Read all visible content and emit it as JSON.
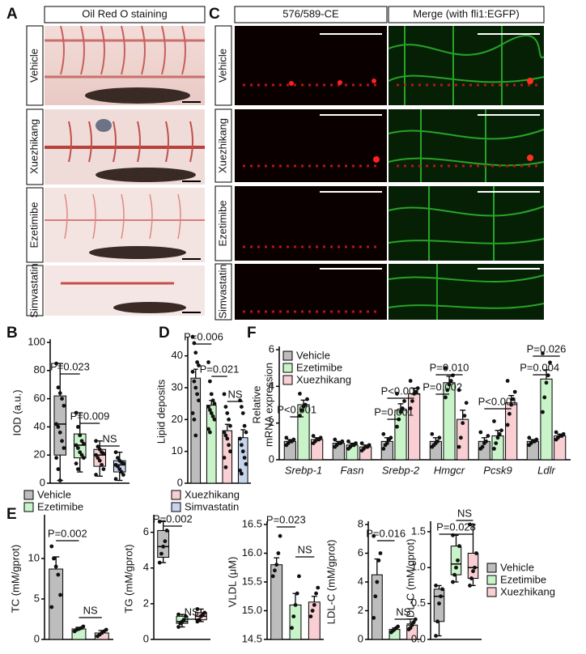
{
  "panel_letters": [
    "A",
    "C",
    "B",
    "D",
    "F",
    "E"
  ],
  "panel_a": {
    "title": "Oil Red O staining",
    "rows": [
      "Vehicle",
      "Xuezhikang",
      "Ezetimibe",
      "Simvastatin"
    ]
  },
  "panel_c": {
    "columns": [
      "576/589-CE",
      "Merge (with fli1:EGFP)"
    ],
    "rows": [
      "Vehicle",
      "Xuezhikang",
      "Ezetimibe",
      "Simvastatin"
    ]
  },
  "chart_data": [
    {
      "type": "box",
      "ylabel": "IOD (a.u.)",
      "ylim": [
        0,
        100
      ],
      "yticks": [
        0,
        20,
        40,
        60,
        80,
        100
      ],
      "annotations": [
        "P=0.023",
        "P=0.009",
        "NS"
      ],
      "series": [
        {
          "name": "Vehicle",
          "color": "#bdbdbd",
          "median": [
            42
          ],
          "q1": [
            20
          ],
          "q3": [
            62
          ],
          "min": [
            2
          ],
          "max": [
            85
          ],
          "points": [
            [
              85,
              68,
              64,
              60,
              55,
              42,
              40,
              36,
              30,
              25,
              18,
              10,
              2
            ]
          ]
        },
        {
          "name": "Ezetimibe",
          "color": "#c9f3c9",
          "median": [
            27
          ],
          "q1": [
            18
          ],
          "q3": [
            35
          ],
          "min": [
            8
          ],
          "max": [
            50
          ],
          "points": [
            [
              50,
              40,
              34,
              30,
              28,
              27,
              25,
              22,
              20,
              18,
              14,
              10
            ]
          ]
        },
        {
          "color": "#f9cfd3",
          "median": [
            20
          ],
          "q1": [
            12
          ],
          "q3": [
            24
          ],
          "min": [
            5
          ],
          "max": [
            30
          ],
          "points": [
            [
              30,
              26,
              24,
              22,
              21,
              20,
              18,
              16,
              13,
              10,
              6
            ]
          ]
        },
        {
          "color": "#c5d5ee",
          "median": [
            13
          ],
          "q1": [
            8
          ],
          "q3": [
            16
          ],
          "min": [
            2
          ],
          "max": [
            22
          ],
          "points": [
            [
              22,
              18,
              16,
              15,
              14,
              13,
              12,
              10,
              8,
              6,
              3
            ]
          ]
        }
      ]
    },
    {
      "type": "bar",
      "ylabel": "Lipid deposits",
      "ylim": [
        0,
        45
      ],
      "yticks": [
        0,
        10,
        20,
        30,
        40
      ],
      "annotations": [
        "P=0.006",
        "P=0.021",
        "NS"
      ],
      "series": [
        {
          "color": "#bdbdbd",
          "values": [
            33
          ],
          "errors": [
            2.8
          ],
          "points": [
            [
              46,
              44,
              41,
              38,
              37,
              35,
              32,
              30,
              28,
              26,
              22,
              20,
              15
            ]
          ]
        },
        {
          "color": "#c9f3c9",
          "values": [
            24.5
          ],
          "errors": [
            1.5
          ],
          "points": [
            [
              38,
              32,
              28,
              26,
              25,
              24,
              23,
              22,
              21,
              20,
              17,
              16
            ]
          ]
        },
        {
          "name": "Xuezhikang",
          "color": "#f9cfd3",
          "values": [
            16.5
          ],
          "errors": [
            2
          ],
          "points": [
            [
              28,
              24,
              22,
              20,
              18,
              16,
              15,
              14,
              12,
              10,
              8,
              5
            ]
          ]
        },
        {
          "name": "Simvastatin",
          "color": "#c5d5ee",
          "values": [
            14.3
          ],
          "errors": [
            2.5
          ],
          "points": [
            [
              26,
              24,
              22,
              18,
              16,
              14,
              12,
              10,
              8,
              6,
              4,
              3
            ]
          ]
        }
      ]
    },
    {
      "type": "bar",
      "ylabel": [
        "Relative",
        "mRNA expression"
      ],
      "ylim": [
        0,
        6
      ],
      "yticks": [
        0,
        2,
        4,
        6
      ],
      "categories": [
        "Srebp-1",
        "Fasn",
        "Srebp-2",
        "Hmgcr",
        "Pcsk9",
        "Ldlr"
      ],
      "annotations": [
        "P<0.001",
        "P=0.001",
        "P<0.001",
        "P=0.002",
        "P=0.010",
        "P<0.001",
        "P=0.004",
        "P=0.026"
      ],
      "series": [
        {
          "name": "Vehicle",
          "color": "#bdbdbd",
          "values": [
            1.0,
            0.9,
            1.0,
            1.0,
            1.0,
            1.0
          ],
          "errors": [
            0.1,
            0.1,
            0.2,
            0.2,
            0.2,
            0.1
          ],
          "points": [
            [
              0.8,
              0.9,
              1.0,
              1.0,
              1.1,
              1.2
            ],
            [
              0.7,
              0.8,
              0.9,
              0.9,
              1.0,
              1.1
            ],
            [
              0.6,
              0.8,
              0.9,
              1.1,
              1.2,
              1.4
            ],
            [
              0.7,
              0.8,
              0.9,
              1.0,
              1.2,
              1.4
            ],
            [
              0.6,
              0.7,
              0.9,
              1.0,
              1.3,
              1.5
            ],
            [
              0.8,
              0.9,
              1.0,
              1.0,
              1.1,
              1.2
            ]
          ]
        },
        {
          "name": "Ezetimibe",
          "color": "#c9f3c9",
          "values": [
            3.0,
            0.8,
            2.7,
            4.2,
            1.3,
            4.4
          ],
          "errors": [
            0.25,
            0.1,
            0.35,
            0.35,
            0.3,
            0.5
          ],
          "points": [
            [
              2.4,
              2.7,
              2.9,
              3.0,
              3.3,
              3.6
            ],
            [
              0.6,
              0.7,
              0.8,
              0.8,
              0.9,
              1.0
            ],
            [
              1.8,
              2.2,
              2.6,
              2.8,
              3.2,
              3.6
            ],
            [
              3.4,
              3.8,
              4.1,
              4.3,
              4.6,
              5.0
            ],
            [
              0.6,
              0.9,
              1.2,
              1.4,
              1.6,
              2.1
            ],
            [
              2.6,
              3.4,
              4.2,
              4.6,
              5.3,
              5.8
            ]
          ]
        },
        {
          "name": "Xuezhikang",
          "color": "#f9cfd3",
          "values": [
            1.1,
            0.7,
            3.6,
            2.2,
            3.1,
            1.3
          ],
          "errors": [
            0.1,
            0.1,
            0.3,
            0.5,
            0.4,
            0.1
          ],
          "points": [
            [
              0.9,
              1.0,
              1.1,
              1.1,
              1.2,
              1.3
            ],
            [
              0.5,
              0.6,
              0.7,
              0.7,
              0.8,
              0.9
            ],
            [
              2.8,
              3.2,
              3.6,
              3.7,
              3.9,
              4.3
            ],
            [
              0.7,
              1.2,
              2.0,
              2.4,
              3.1,
              3.8
            ],
            [
              1.9,
              2.5,
              3.0,
              3.3,
              3.7,
              4.3
            ],
            [
              1.1,
              1.2,
              1.3,
              1.3,
              1.4,
              1.5
            ]
          ]
        }
      ]
    },
    {
      "type": "bar",
      "ylabel": "TC (mM/gprot)",
      "ylim": [
        0,
        15
      ],
      "yticks": [
        0,
        5,
        10
      ],
      "annotations": [
        "P=0.002",
        "NS"
      ],
      "series": [
        {
          "color": "#bdbdbd",
          "values": [
            8.7
          ],
          "errors": [
            1.5
          ],
          "points": [
            [
              11.5,
              10,
              9,
              8,
              5.5,
              4
            ]
          ]
        },
        {
          "color": "#c9f3c9",
          "values": [
            1.3
          ],
          "errors": [
            0.2
          ],
          "points": [
            [
              1.0,
              1.2,
              1.3,
              1.4,
              1.6
            ]
          ]
        },
        {
          "color": "#f9cfd3",
          "values": [
            0.8
          ],
          "errors": [
            0.3
          ],
          "points": [
            [
              0.4,
              0.6,
              0.8,
              1.0,
              1.2
            ]
          ]
        }
      ]
    },
    {
      "type": "box",
      "ylabel": "TG (mM/gprot)",
      "ylim": [
        0,
        6.8
      ],
      "yticks": [
        0,
        2,
        4,
        6
      ],
      "annotations": [
        "P=0.002",
        "NS"
      ],
      "series": [
        {
          "color": "#bdbdbd",
          "median": [
            5.2
          ],
          "q1": [
            4.6
          ],
          "q3": [
            6.1
          ],
          "min": [
            4.3
          ],
          "max": [
            6.6
          ],
          "points": [
            [
              4.3,
              4.8,
              5.2,
              5.5,
              6.1,
              6.6
            ]
          ]
        },
        {
          "color": "#c9f3c9",
          "median": [
            1.0
          ],
          "q1": [
            0.9
          ],
          "q3": [
            1.3
          ],
          "min": [
            0.7
          ],
          "max": [
            1.4
          ],
          "points": [
            [
              0.7,
              0.9,
              1.0,
              1.1,
              1.3,
              1.4
            ]
          ]
        },
        {
          "color": "#f9cfd3",
          "median": [
            1.3
          ],
          "q1": [
            1.1
          ],
          "q3": [
            1.5
          ],
          "min": [
            1.0
          ],
          "max": [
            1.7
          ],
          "points": [
            [
              1.0,
              1.1,
              1.3,
              1.4,
              1.5,
              1.7
            ]
          ]
        }
      ]
    },
    {
      "type": "bar",
      "ylabel": "VLDL (μM)",
      "ylim": [
        14.5,
        16.5
      ],
      "yticks": [
        14.5,
        {
          "value": 15,
          "label": "15.0"
        },
        15.5,
        {
          "value": 16,
          "label": "16.0"
        },
        16.5
      ],
      "annotations": [
        "P=0.023",
        "NS"
      ],
      "series": [
        {
          "color": "#bdbdbd",
          "values": [
            15.8
          ],
          "errors": [
            0.12
          ],
          "points": [
            [
              15.6,
              15.7,
              15.8,
              16.0,
              16.3
            ]
          ]
        },
        {
          "color": "#c9f3c9",
          "values": [
            15.1
          ],
          "errors": [
            0.2
          ],
          "points": [
            [
              14.7,
              14.9,
              15.1,
              15.3,
              15.6
            ]
          ]
        },
        {
          "color": "#f9cfd3",
          "values": [
            15.15
          ],
          "errors": [
            0.1
          ],
          "points": [
            [
              14.9,
              15.0,
              15.1,
              15.3,
              15.4
            ]
          ]
        }
      ]
    },
    {
      "type": "bar",
      "ylabel": "LDL-C (mM/gprot)",
      "ylim": [
        0,
        8
      ],
      "yticks": [
        0,
        2,
        4,
        6,
        8
      ],
      "annotations": [
        "P=0.016",
        "NS"
      ],
      "series": [
        {
          "color": "#bdbdbd",
          "values": [
            4.5
          ],
          "errors": [
            1.1
          ],
          "points": [
            [
              1.5,
              3.0,
              4.0,
              5.5,
              6.0,
              7.2
            ]
          ]
        },
        {
          "color": "#c9f3c9",
          "values": [
            0.7
          ],
          "errors": [
            0.1
          ],
          "points": [
            [
              0.5,
              0.6,
              0.7,
              0.8,
              0.9
            ]
          ]
        },
        {
          "color": "#f9cfd3",
          "values": [
            1.0
          ],
          "errors": [
            0.2
          ],
          "points": [
            [
              0.7,
              0.8,
              1.0,
              1.2,
              1.4
            ]
          ]
        }
      ]
    },
    {
      "type": "box",
      "ylabel": "HDL-C (mM/gprot)",
      "ylim": [
        0,
        1.6
      ],
      "yticks": [
        {
          "value": 0,
          "label": "0.0"
        },
        0.5,
        {
          "value": 1,
          "label": "1.0"
        },
        1.5
      ],
      "annotations": [
        "P=0.028",
        "NS"
      ],
      "series": [
        {
          "name": "Vehicle",
          "color": "#bdbdbd",
          "median": [
            0.6
          ],
          "q1": [
            0.25
          ],
          "q3": [
            0.7
          ],
          "min": [
            0.05
          ],
          "max": [
            0.75
          ],
          "points": [
            [
              0.05,
              0.25,
              0.5,
              0.6,
              0.7,
              0.75
            ]
          ]
        },
        {
          "name": "Ezetimibe",
          "color": "#c9f3c9",
          "median": [
            1.05
          ],
          "q1": [
            0.9
          ],
          "q3": [
            1.3
          ],
          "min": [
            0.8
          ],
          "max": [
            1.45
          ],
          "points": [
            [
              0.8,
              0.9,
              1.0,
              1.1,
              1.3,
              1.45
            ]
          ]
        },
        {
          "name": "Xuezhikang",
          "color": "#f9cfd3",
          "median": [
            1.0
          ],
          "q1": [
            0.85
          ],
          "q3": [
            1.2
          ],
          "min": [
            0.75
          ],
          "max": [
            1.6
          ],
          "points": [
            [
              0.75,
              0.85,
              0.95,
              1.0,
              1.2,
              1.6
            ]
          ]
        }
      ]
    }
  ]
}
